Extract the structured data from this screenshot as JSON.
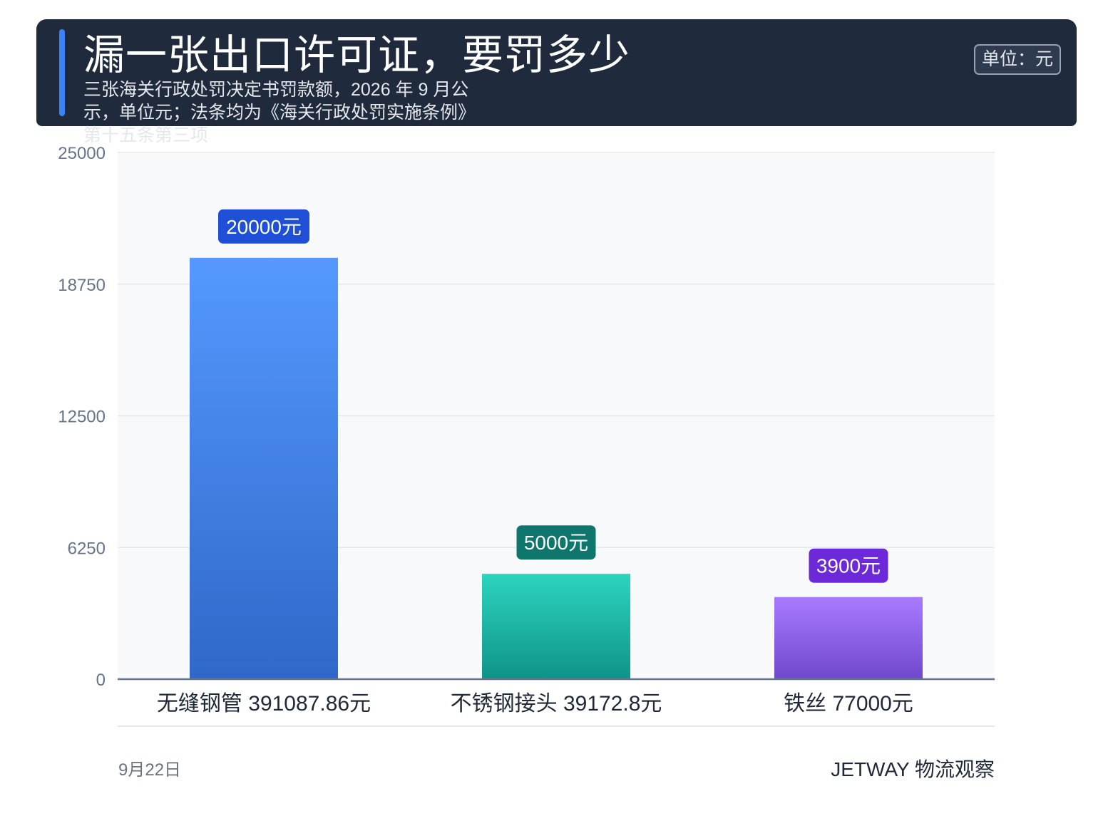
{
  "header": {
    "title": "漏一张出口许可证，要罚多少",
    "subtitle": "三张海关行政处罚决定书罚款额，2026 年 9 月公示，单位元；法条均为《海关行政处罚实施条例》第十五条第三项",
    "unit_badge": "单位：元"
  },
  "footer": {
    "date": "9月22日",
    "brand": "JETWAY 物流观察"
  },
  "colors": {
    "header_bg": "#1f2a3d",
    "accent": "#3b82f6",
    "plot_bg": "#f8f9fb",
    "grid": "#e5e7eb",
    "axis": "#64748b"
  },
  "chart_data": {
    "type": "bar",
    "title": "漏一张出口许可证，要罚多少",
    "xlabel": "",
    "ylabel": "",
    "ylim": [
      0,
      25000
    ],
    "yticks": [
      0,
      6250,
      12500,
      18750,
      25000
    ],
    "grid": true,
    "categories": [
      "无缝钢管 391087.86元",
      "不锈钢接头 39172.8元",
      "铁丝 77000元"
    ],
    "values": [
      20000,
      5000,
      3900
    ],
    "value_labels": [
      "20000元",
      "5000元",
      "3900元"
    ],
    "bar_colors": [
      {
        "top": "#5599ff",
        "bottom": "#2f68c8",
        "label_bg": "#1e4fd6"
      },
      {
        "top": "#2dd4bf",
        "bottom": "#0e9488",
        "label_bg": "#0f766e"
      },
      {
        "top": "#a97aff",
        "bottom": "#7048cc",
        "label_bg": "#6d28d9"
      }
    ]
  }
}
